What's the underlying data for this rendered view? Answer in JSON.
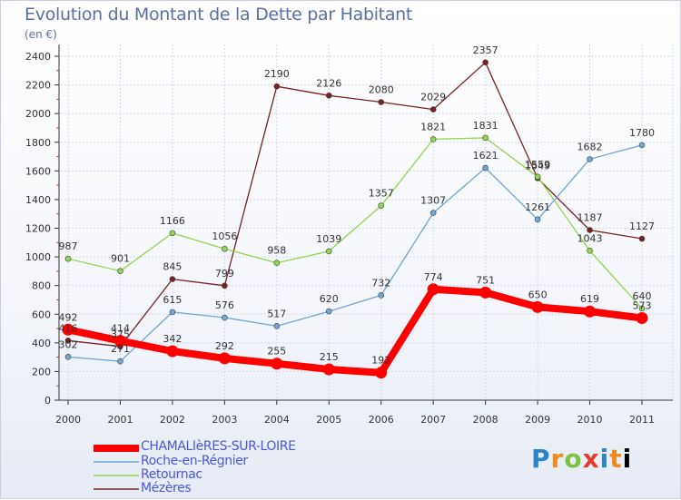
{
  "header": {
    "title": "Evolution du Montant de la Dette par Habitant",
    "unit": "(en €)"
  },
  "logo": {
    "text": "Proxiti"
  },
  "chart_data": {
    "type": "line",
    "title": "Evolution du Montant de la Dette par Habitant",
    "subtitle": "(en €)",
    "xlabel": "",
    "ylabel": "",
    "x": [
      "2000",
      "2001",
      "2002",
      "2003",
      "2004",
      "2005",
      "2006",
      "2007",
      "2008",
      "2009",
      "2010",
      "2011"
    ],
    "ylim": [
      0,
      2400
    ],
    "yticks": [
      "0",
      "200",
      "400",
      "600",
      "800",
      "1000",
      "1200",
      "1400",
      "1600",
      "1800",
      "2000",
      "2200",
      "2400"
    ],
    "grid": true,
    "legend_position": "bottom-left",
    "series": [
      {
        "name": "CHAMALIèRES-SUR-LOIRE",
        "color": "#ff0000",
        "values": [
          492,
          414,
          342,
          292,
          255,
          215,
          192,
          774,
          751,
          650,
          619,
          573
        ],
        "labels": [
          "492",
          "414",
          "342",
          "292",
          "255",
          "215",
          "192",
          "774",
          "751",
          "650",
          "619",
          "573"
        ]
      },
      {
        "name": "Roche-en-Régnier",
        "color": "#6fa6d6",
        "values": [
          302,
          271,
          615,
          576,
          517,
          620,
          732,
          1307,
          1621,
          1261,
          1682,
          1780
        ],
        "labels": [
          "302",
          "271",
          "615",
          "576",
          "517",
          "620",
          "732",
          "1307",
          "1621",
          "1261",
          "1682",
          "1780"
        ]
      },
      {
        "name": "Retournac",
        "color": "#8ed64e",
        "values": [
          987,
          901,
          1166,
          1056,
          958,
          1039,
          1357,
          1821,
          1831,
          1559,
          1043,
          640
        ],
        "labels": [
          "987",
          "901",
          "1166",
          "1056",
          "958",
          "1039",
          "1357",
          "1821",
          "1831",
          "1559",
          "1043",
          "640"
        ]
      },
      {
        "name": "Mézères",
        "color": "#7a2222",
        "values": [
          416,
          375,
          845,
          799,
          2190,
          2126,
          2080,
          2029,
          2357,
          1549,
          1187,
          1127
        ],
        "labels": [
          "416",
          "375",
          "845",
          "799",
          "2190",
          "2126",
          "2080",
          "2029",
          "2357",
          "1549",
          "1187",
          "1127"
        ]
      }
    ]
  }
}
